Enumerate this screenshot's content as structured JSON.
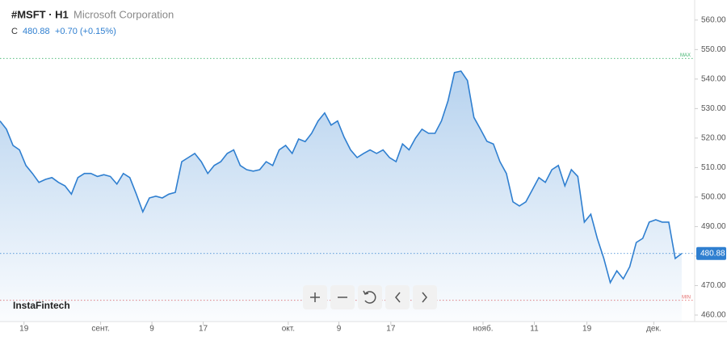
{
  "chart_data": {
    "type": "line",
    "symbol": "#MSFT · H1",
    "company": "Microsoft Corporation",
    "price_prefix": "C",
    "last_price": 480.88,
    "change": "+0.70 (+0.15%)",
    "brand": "InstaFintech",
    "max_line": {
      "label": "MAX",
      "value": 547
    },
    "min_line": {
      "label": "MIN",
      "value": 465
    },
    "x": [
      0,
      1,
      2,
      3,
      4,
      5,
      6,
      7,
      8,
      9,
      10,
      11,
      12,
      13,
      14,
      15,
      16,
      17,
      18,
      19,
      20,
      21,
      22,
      23,
      24,
      25,
      26,
      27,
      28,
      29,
      30,
      31,
      32,
      33,
      34,
      35,
      36,
      37,
      38,
      39,
      40,
      41,
      42,
      43,
      44,
      45,
      46,
      47,
      48,
      49,
      50,
      51,
      52,
      53,
      54,
      55,
      56,
      57,
      58,
      59,
      60,
      61,
      62,
      63,
      64,
      65,
      66,
      67,
      68,
      69,
      70,
      71,
      72,
      73,
      74,
      75,
      76,
      77,
      78,
      79,
      80,
      81,
      82,
      83,
      84,
      85,
      86,
      87,
      88,
      89,
      90,
      91,
      92,
      93,
      94,
      95,
      96,
      97,
      98,
      99,
      100,
      101,
      102,
      103,
      104,
      105
    ],
    "series": [
      {
        "name": "#MSFT",
        "color": "#2f7fd0",
        "values": [
          525.8,
          523,
          517.5,
          516,
          510.7,
          508,
          505,
          506,
          506.6,
          505,
          503.8,
          501,
          506.6,
          508,
          508,
          507,
          507.6,
          507,
          504.4,
          508,
          506.6,
          501,
          495,
          499.7,
          500.3,
          499.7,
          501,
          501.6,
          512,
          513.4,
          514.8,
          512,
          508,
          510.7,
          512,
          514.8,
          516,
          510.7,
          509.3,
          508.8,
          509.3,
          512,
          510.7,
          516,
          517.5,
          514.8,
          519.7,
          518.8,
          521.6,
          525.8,
          528.5,
          524.4,
          525.8,
          520.3,
          516,
          513.4,
          514.8,
          516,
          514.8,
          516,
          513.4,
          512,
          518,
          516,
          520,
          523,
          521.6,
          521.6,
          525.8,
          532.6,
          542.2,
          542.7,
          539.5,
          527,
          523,
          518.9,
          518,
          512,
          508,
          498.4,
          497,
          498.4,
          502.5,
          506.6,
          505,
          509.3,
          510.7,
          503.8,
          509.3,
          507,
          491.5,
          494.2,
          486,
          479.2,
          471,
          475,
          472.3,
          476.4,
          484.6,
          486,
          491.5,
          492.3,
          491.5,
          491.5,
          479.2,
          480.88
        ]
      }
    ],
    "xlim": [
      0,
      107
    ],
    "xticks": [
      {
        "value": 3.7,
        "label": "19"
      },
      {
        "value": 15.5,
        "label": "сент."
      },
      {
        "value": 23.4,
        "label": "9"
      },
      {
        "value": 31.3,
        "label": "17"
      },
      {
        "value": 44.4,
        "label": "окт."
      },
      {
        "value": 52.2,
        "label": "9"
      },
      {
        "value": 60.2,
        "label": "17"
      },
      {
        "value": 74.4,
        "label": "нояб."
      },
      {
        "value": 82.3,
        "label": "11"
      },
      {
        "value": 90.4,
        "label": "19"
      },
      {
        "value": 100.7,
        "label": "дек."
      }
    ],
    "ylim": [
      457.8,
      566.8
    ],
    "yticks": [
      {
        "value": 460,
        "label": "460.00"
      },
      {
        "value": 470,
        "label": "470.00"
      },
      {
        "value": 480,
        "label": "480.00"
      },
      {
        "value": 490,
        "label": "490.00"
      },
      {
        "value": 500,
        "label": "500.00"
      },
      {
        "value": 510,
        "label": "510.00"
      },
      {
        "value": 520,
        "label": "520.00"
      },
      {
        "value": 530,
        "label": "530.00"
      },
      {
        "value": 540,
        "label": "540.00"
      },
      {
        "value": 550,
        "label": "550.00"
      },
      {
        "value": 560,
        "label": "560.00"
      }
    ]
  }
}
